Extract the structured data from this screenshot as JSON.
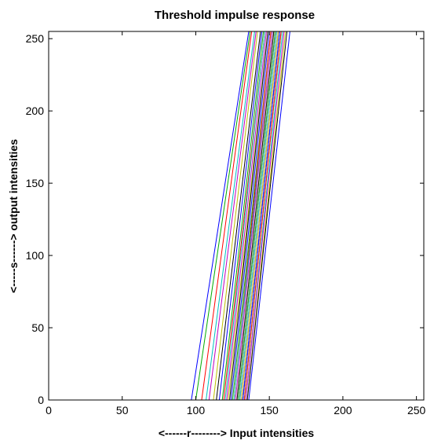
{
  "chart_data": {
    "type": "line",
    "title": "Threshold impulse response",
    "xlabel": "<------r--------> Input intensities",
    "ylabel": "<-----s------> output intensities",
    "xlim": [
      0,
      255
    ],
    "ylim": [
      0,
      255
    ],
    "x_ticks": [
      "0",
      "50",
      "100",
      "150",
      "200",
      "250"
    ],
    "y_ticks": [
      "0",
      "50",
      "100",
      "150",
      "200",
      "250"
    ],
    "grid": false,
    "legend": "none",
    "colors": [
      "#0000ff",
      "#00aa00",
      "#ff0000",
      "#00bfbf",
      "#bf00bf",
      "#bfbf00",
      "#000000"
    ],
    "series": [
      {
        "x": [
          0,
          97,
          136,
          255
        ],
        "y": [
          0,
          0,
          255,
          255
        ]
      },
      {
        "x": [
          0,
          100,
          137,
          255
        ],
        "y": [
          0,
          0,
          255,
          255
        ]
      },
      {
        "x": [
          0,
          104,
          138,
          255
        ],
        "y": [
          0,
          0,
          255,
          255
        ]
      },
      {
        "x": [
          0,
          107,
          140,
          255
        ],
        "y": [
          0,
          0,
          255,
          255
        ]
      },
      {
        "x": [
          0,
          109,
          141,
          255
        ],
        "y": [
          0,
          0,
          255,
          255
        ]
      },
      {
        "x": [
          0,
          112,
          142,
          255
        ],
        "y": [
          0,
          0,
          255,
          255
        ]
      },
      {
        "x": [
          0,
          114,
          144,
          255
        ],
        "y": [
          0,
          0,
          255,
          255
        ]
      },
      {
        "x": [
          0,
          116,
          145,
          255
        ],
        "y": [
          0,
          0,
          255,
          255
        ]
      },
      {
        "x": [
          0,
          118,
          146,
          255
        ],
        "y": [
          0,
          0,
          255,
          255
        ]
      },
      {
        "x": [
          0,
          119,
          147,
          255
        ],
        "y": [
          0,
          0,
          255,
          255
        ]
      },
      {
        "x": [
          0,
          120,
          147,
          255
        ],
        "y": [
          0,
          0,
          255,
          255
        ]
      },
      {
        "x": [
          0,
          121,
          148,
          255
        ],
        "y": [
          0,
          0,
          255,
          255
        ]
      },
      {
        "x": [
          0,
          122,
          149,
          255
        ],
        "y": [
          0,
          0,
          255,
          255
        ]
      },
      {
        "x": [
          0,
          123,
          149,
          255
        ],
        "y": [
          0,
          0,
          255,
          255
        ]
      },
      {
        "x": [
          0,
          124,
          150,
          255
        ],
        "y": [
          0,
          0,
          255,
          255
        ]
      },
      {
        "x": [
          0,
          125,
          151,
          255
        ],
        "y": [
          0,
          0,
          255,
          255
        ]
      },
      {
        "x": [
          0,
          126,
          151,
          255
        ],
        "y": [
          0,
          0,
          255,
          255
        ]
      },
      {
        "x": [
          0,
          126,
          152,
          255
        ],
        "y": [
          0,
          0,
          255,
          255
        ]
      },
      {
        "x": [
          0,
          127,
          152,
          255
        ],
        "y": [
          0,
          0,
          255,
          255
        ]
      },
      {
        "x": [
          0,
          128,
          153,
          255
        ],
        "y": [
          0,
          0,
          255,
          255
        ]
      },
      {
        "x": [
          0,
          128,
          153,
          255
        ],
        "y": [
          0,
          0,
          255,
          255
        ]
      },
      {
        "x": [
          0,
          129,
          154,
          255
        ],
        "y": [
          0,
          0,
          255,
          255
        ]
      },
      {
        "x": [
          0,
          129,
          154,
          255
        ],
        "y": [
          0,
          0,
          255,
          255
        ]
      },
      {
        "x": [
          0,
          130,
          155,
          255
        ],
        "y": [
          0,
          0,
          255,
          255
        ]
      },
      {
        "x": [
          0,
          130,
          155,
          255
        ],
        "y": [
          0,
          0,
          255,
          255
        ]
      },
      {
        "x": [
          0,
          131,
          156,
          255
        ],
        "y": [
          0,
          0,
          255,
          255
        ]
      },
      {
        "x": [
          0,
          131,
          156,
          255
        ],
        "y": [
          0,
          0,
          255,
          255
        ]
      },
      {
        "x": [
          0,
          132,
          157,
          255
        ],
        "y": [
          0,
          0,
          255,
          255
        ]
      },
      {
        "x": [
          0,
          132,
          157,
          255
        ],
        "y": [
          0,
          0,
          255,
          255
        ]
      },
      {
        "x": [
          0,
          133,
          158,
          255
        ],
        "y": [
          0,
          0,
          255,
          255
        ]
      },
      {
        "x": [
          0,
          133,
          158,
          255
        ],
        "y": [
          0,
          0,
          255,
          255
        ]
      },
      {
        "x": [
          0,
          134,
          159,
          255
        ],
        "y": [
          0,
          0,
          255,
          255
        ]
      },
      {
        "x": [
          0,
          134,
          160,
          255
        ],
        "y": [
          0,
          0,
          255,
          255
        ]
      },
      {
        "x": [
          0,
          135,
          161,
          255
        ],
        "y": [
          0,
          0,
          255,
          255
        ]
      },
      {
        "x": [
          0,
          135,
          162,
          255
        ],
        "y": [
          0,
          0,
          255,
          255
        ]
      },
      {
        "x": [
          0,
          136,
          164,
          255
        ],
        "y": [
          0,
          0,
          255,
          255
        ]
      }
    ]
  }
}
